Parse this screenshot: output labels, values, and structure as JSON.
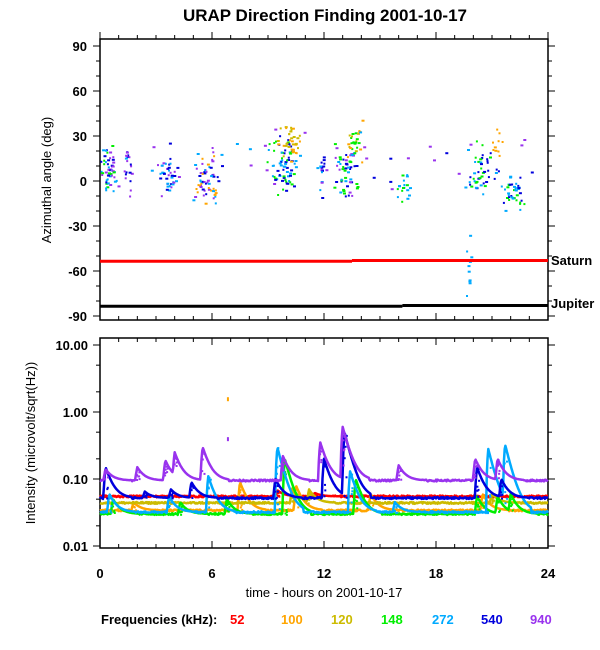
{
  "chart_data": [
    {
      "type": "scatter",
      "title": "URAP Direction Finding  2001-10-17",
      "xlabel": "",
      "ylabel": "Azimuthal angle (deg)",
      "xlim": [
        0,
        24
      ],
      "ylim": [
        -90,
        90
      ],
      "yticks": [
        "90",
        "60",
        "30",
        "0",
        "-30",
        "-60",
        "-90"
      ],
      "ytick_values": [
        90,
        60,
        30,
        0,
        -30,
        -60,
        -90
      ],
      "reference_lines": [
        {
          "name": "Saturn",
          "label": "Saturn",
          "color": "#ff0000",
          "segments": [
            {
              "x": [
                0,
                13.5
              ],
              "y": -53.5
            },
            {
              "x": [
                13.5,
                24
              ],
              "y": -53
            }
          ]
        },
        {
          "name": "Jupiter",
          "label": "Jupiter",
          "color": "#000000",
          "segments": [
            {
              "x": [
                0,
                16.2
              ],
              "y": -83.5
            },
            {
              "x": [
                16.2,
                24
              ],
              "y": -83
            }
          ]
        }
      ],
      "clusters": [
        {
          "x": 0.4,
          "y": 8,
          "sx": 0.25,
          "sy": 7,
          "n": 55,
          "colors": [
            "540",
            "272",
            "940",
            "148"
          ]
        },
        {
          "x": 1.4,
          "y": 8,
          "sx": 0.12,
          "sy": 7,
          "n": 18,
          "colors": [
            "540",
            "940"
          ]
        },
        {
          "x": 3.6,
          "y": 5,
          "sx": 0.25,
          "sy": 7,
          "n": 40,
          "colors": [
            "272",
            "540",
            "940"
          ]
        },
        {
          "x": 5.6,
          "y": 3,
          "sx": 0.35,
          "sy": 8,
          "n": 60,
          "colors": [
            "272",
            "540",
            "940",
            "100"
          ]
        },
        {
          "x": 9.8,
          "y": 10,
          "sx": 0.4,
          "sy": 9,
          "n": 70,
          "colors": [
            "272",
            "540",
            "148"
          ]
        },
        {
          "x": 10.1,
          "y": 25,
          "sx": 0.35,
          "sy": 7,
          "n": 35,
          "colors": [
            "100",
            "120"
          ]
        },
        {
          "x": 11.9,
          "y": 5,
          "sx": 0.12,
          "sy": 8,
          "n": 15,
          "colors": [
            "272",
            "540",
            "940"
          ]
        },
        {
          "x": 13.2,
          "y": 8,
          "sx": 0.3,
          "sy": 10,
          "n": 50,
          "colors": [
            "540",
            "272",
            "148",
            "940"
          ]
        },
        {
          "x": 13.6,
          "y": 25,
          "sx": 0.25,
          "sy": 7,
          "n": 25,
          "colors": [
            "100",
            "120",
            "148"
          ]
        },
        {
          "x": 16.3,
          "y": -3,
          "sx": 0.2,
          "sy": 6,
          "n": 18,
          "colors": [
            "272",
            "148"
          ]
        },
        {
          "x": 20.4,
          "y": 7,
          "sx": 0.35,
          "sy": 8,
          "n": 45,
          "colors": [
            "540",
            "272",
            "148"
          ]
        },
        {
          "x": 21.3,
          "y": 25,
          "sx": 0.15,
          "sy": 6,
          "n": 10,
          "colors": [
            "100"
          ]
        },
        {
          "x": 22.0,
          "y": -7,
          "sx": 0.3,
          "sy": 6,
          "n": 40,
          "colors": [
            "272",
            "148",
            "540"
          ]
        },
        {
          "x": 19.7,
          "y": -60,
          "sx": 0.08,
          "sy": 10,
          "n": 10,
          "colors": [
            "272"
          ]
        }
      ]
    },
    {
      "type": "line",
      "xlabel": "time - hours on 2001-10-17",
      "ylabel": "Intensity (microvolt/sqrt(Hz))",
      "xlim": [
        0,
        24
      ],
      "ylim": [
        0.01,
        10
      ],
      "yscale": "log",
      "xticks": [
        "0",
        "6",
        "12",
        "18",
        "24"
      ],
      "xtick_values": [
        0,
        6,
        12,
        18,
        24
      ],
      "yticks": [
        "10.00",
        "1.00",
        "0.10",
        "0.01"
      ],
      "ytick_values": [
        10,
        1,
        0.1,
        0.01
      ],
      "series": [
        {
          "name": "52",
          "color": "#ff0000",
          "baseline": 0.055,
          "peaks": [
            {
              "t": 9.5,
              "a": 0.068
            },
            {
              "t": 11.5,
              "a": 0.062
            }
          ]
        },
        {
          "name": "100",
          "color": "#ffa500",
          "baseline": 0.034,
          "peaks": [
            {
              "t": 1.8,
              "a": 0.045
            },
            {
              "t": 7.5,
              "a": 0.09
            },
            {
              "t": 10.5,
              "a": 0.08
            },
            {
              "t": 14.5,
              "a": 0.06
            },
            {
              "t": 20.5,
              "a": 0.06
            }
          ]
        },
        {
          "name": "120",
          "color": "#ccbb00",
          "baseline": 0.044,
          "peaks": [
            {
              "t": 10.3,
              "a": 0.075
            },
            {
              "t": 11.2,
              "a": 0.07
            },
            {
              "t": 21.0,
              "a": 0.06
            }
          ]
        },
        {
          "name": "148",
          "color": "#00ee00",
          "baseline": 0.03,
          "peaks": [
            {
              "t": 0.7,
              "a": 0.05
            },
            {
              "t": 4.3,
              "a": 0.045
            },
            {
              "t": 6.8,
              "a": 0.05
            },
            {
              "t": 9.9,
              "a": 0.2
            },
            {
              "t": 13.7,
              "a": 0.1
            },
            {
              "t": 20.2,
              "a": 0.055
            },
            {
              "t": 21.3,
              "a": 0.055
            },
            {
              "t": 22.0,
              "a": 0.06
            }
          ]
        },
        {
          "name": "272",
          "color": "#00aaff",
          "baseline": 0.032,
          "peaks": [
            {
              "t": 0.5,
              "a": 0.06
            },
            {
              "t": 3.7,
              "a": 0.055
            },
            {
              "t": 5.8,
              "a": 0.11
            },
            {
              "t": 9.5,
              "a": 0.3
            },
            {
              "t": 13.4,
              "a": 0.13
            },
            {
              "t": 15.8,
              "a": 0.045
            },
            {
              "t": 20.8,
              "a": 0.28
            },
            {
              "t": 21.7,
              "a": 0.33
            }
          ]
        },
        {
          "name": "540",
          "color": "#0000dd",
          "baseline": 0.052,
          "peaks": [
            {
              "t": 0.3,
              "a": 0.15
            },
            {
              "t": 2.4,
              "a": 0.065
            },
            {
              "t": 3.8,
              "a": 0.07
            },
            {
              "t": 4.9,
              "a": 0.09
            },
            {
              "t": 9.4,
              "a": 0.1
            },
            {
              "t": 12.0,
              "a": 0.2
            },
            {
              "t": 13.1,
              "a": 0.5
            },
            {
              "t": 20.2,
              "a": 0.15
            },
            {
              "t": 21.5,
              "a": 0.1
            }
          ]
        },
        {
          "name": "940",
          "color": "#9933ee",
          "baseline": 0.095,
          "peaks": [
            {
              "t": 0.3,
              "a": 0.14
            },
            {
              "t": 2.0,
              "a": 0.15
            },
            {
              "t": 3.5,
              "a": 0.19
            },
            {
              "t": 4.0,
              "a": 0.25
            },
            {
              "t": 5.5,
              "a": 0.3
            },
            {
              "t": 9.8,
              "a": 0.22
            },
            {
              "t": 11.8,
              "a": 0.35
            },
            {
              "t": 13.0,
              "a": 0.6
            },
            {
              "t": 16.0,
              "a": 0.16
            },
            {
              "t": 20.1,
              "a": 0.2
            },
            {
              "t": 21.3,
              "a": 0.2
            }
          ]
        }
      ],
      "outliers": [
        {
          "t": 6.8,
          "v": 1.5,
          "color": "100"
        },
        {
          "t": 6.8,
          "v": 0.38,
          "color": "940"
        }
      ]
    }
  ],
  "legend": {
    "label": "Frequencies (kHz):",
    "entries": [
      {
        "name": "52",
        "color": "#ff0000"
      },
      {
        "name": "100",
        "color": "#ffa500"
      },
      {
        "name": "120",
        "color": "#ccbb00"
      },
      {
        "name": "148",
        "color": "#00ee00"
      },
      {
        "name": "272",
        "color": "#00aaff"
      },
      {
        "name": "540",
        "color": "#0000dd"
      },
      {
        "name": "940",
        "color": "#9933ee"
      }
    ]
  }
}
